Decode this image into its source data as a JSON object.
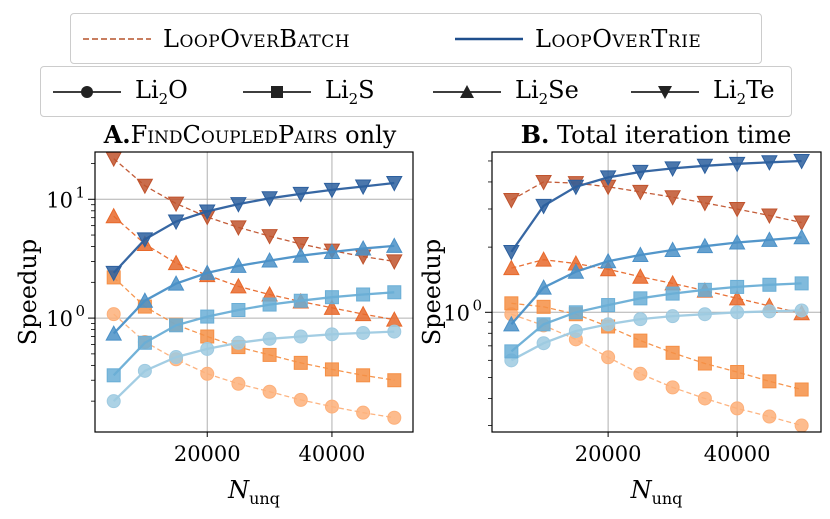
{
  "legend": {
    "methods": [
      {
        "label": "LoopOverBatch",
        "style": "dashed"
      },
      {
        "label": "LoopOverTrie",
        "style": "solid"
      }
    ],
    "materials": [
      {
        "label_main": "Li",
        "label_sub": "2",
        "label_tail": "O",
        "marker": "circle"
      },
      {
        "label_main": "Li",
        "label_sub": "2",
        "label_tail": "S",
        "marker": "square"
      },
      {
        "label_main": "Li",
        "label_sub": "2",
        "label_tail": "Se",
        "marker": "triangle-up"
      },
      {
        "label_main": "Li",
        "label_sub": "2",
        "label_tail": "Te",
        "marker": "triangle-down"
      }
    ]
  },
  "colors": {
    "legend_dashed": "#b5532b",
    "legend_solid": "#1f4e8c",
    "trie": {
      "circle": "#9ecae1",
      "square": "#6aaed6",
      "triangle-up": "#4a90c7",
      "triangle-down": "#2c5f9e"
    },
    "batch": {
      "circle": "#fdb07a",
      "square": "#f58f45",
      "triangle-up": "#e8692b",
      "triangle-down": "#c0532d"
    }
  },
  "chart_data": [
    {
      "type": "line",
      "title_bold": "A.",
      "title_sc": "FindCoupledPairs",
      "title_rest": " only",
      "xlabel_main": "N",
      "xlabel_sub": "unq",
      "ylabel": "Speedup",
      "yscale": "log",
      "xlim": [
        2000,
        53000
      ],
      "ylim": [
        0.11,
        25
      ],
      "xticks": [
        20000,
        40000
      ],
      "xtick_labels": [
        "20000",
        "40000"
      ],
      "yticks": [
        1,
        10
      ],
      "ytick_labels": [
        {
          "base": "10",
          "exp": "0"
        },
        {
          "base": "10",
          "exp": "1"
        }
      ],
      "x": [
        5000,
        10000,
        15000,
        20000,
        25000,
        30000,
        35000,
        40000,
        45000,
        50000
      ],
      "series": [
        {
          "material": "Li2O",
          "method": "LoopOverTrie",
          "marker": "circle",
          "values": [
            0.2,
            0.36,
            0.47,
            0.55,
            0.62,
            0.67,
            0.7,
            0.73,
            0.75,
            0.77
          ]
        },
        {
          "material": "Li2S",
          "method": "LoopOverTrie",
          "marker": "square",
          "values": [
            0.33,
            0.62,
            0.87,
            1.03,
            1.17,
            1.3,
            1.4,
            1.5,
            1.58,
            1.65
          ]
        },
        {
          "material": "Li2Se",
          "method": "LoopOverTrie",
          "marker": "triangle-up",
          "values": [
            0.74,
            1.4,
            1.95,
            2.4,
            2.75,
            3.05,
            3.35,
            3.6,
            3.85,
            4.05
          ]
        },
        {
          "material": "Li2Te",
          "method": "LoopOverTrie",
          "marker": "triangle-down",
          "values": [
            2.4,
            4.6,
            6.5,
            7.9,
            9.1,
            10.2,
            11.1,
            12.0,
            12.8,
            13.7
          ]
        },
        {
          "material": "Li2O",
          "method": "LoopOverBatch",
          "marker": "circle",
          "values": [
            1.08,
            0.63,
            0.45,
            0.34,
            0.28,
            0.24,
            0.205,
            0.18,
            0.16,
            0.145
          ]
        },
        {
          "material": "Li2S",
          "method": "LoopOverBatch",
          "marker": "square",
          "values": [
            2.2,
            1.25,
            0.88,
            0.7,
            0.57,
            0.49,
            0.42,
            0.37,
            0.33,
            0.3
          ]
        },
        {
          "material": "Li2Se",
          "method": "LoopOverBatch",
          "marker": "triangle-up",
          "values": [
            7.2,
            4.2,
            2.9,
            2.3,
            1.85,
            1.58,
            1.38,
            1.22,
            1.08,
            0.97
          ]
        },
        {
          "material": "Li2Te",
          "method": "LoopOverBatch",
          "marker": "triangle-down",
          "values": [
            22,
            13,
            9.2,
            7.1,
            5.8,
            4.9,
            4.2,
            3.7,
            3.3,
            3.0
          ]
        }
      ]
    },
    {
      "type": "line",
      "title_bold": "B.",
      "title_sc": "",
      "title_rest": " Total iteration time",
      "xlabel_main": "N",
      "xlabel_sub": "unq",
      "ylabel": "Speedup",
      "yscale": "log",
      "xlim": [
        2000,
        53000
      ],
      "ylim": [
        0.28,
        5.5
      ],
      "xticks": [
        20000,
        40000
      ],
      "xtick_labels": [
        "20000",
        "40000"
      ],
      "yticks": [
        1
      ],
      "ytick_labels": [
        {
          "base": "10",
          "exp": "0"
        }
      ],
      "x": [
        5000,
        10000,
        15000,
        20000,
        25000,
        30000,
        35000,
        40000,
        45000,
        50000
      ],
      "series": [
        {
          "material": "Li2O",
          "method": "LoopOverTrie",
          "marker": "circle",
          "values": [
            0.6,
            0.72,
            0.82,
            0.88,
            0.93,
            0.96,
            0.98,
            1.0,
            1.01,
            1.02
          ]
        },
        {
          "material": "Li2S",
          "method": "LoopOverTrie",
          "marker": "square",
          "values": [
            0.66,
            0.88,
            1.0,
            1.08,
            1.16,
            1.22,
            1.27,
            1.31,
            1.34,
            1.36
          ]
        },
        {
          "material": "Li2Se",
          "method": "LoopOverTrie",
          "marker": "triangle-up",
          "values": [
            0.88,
            1.3,
            1.54,
            1.72,
            1.84,
            1.94,
            2.02,
            2.1,
            2.16,
            2.22
          ]
        },
        {
          "material": "Li2Te",
          "method": "LoopOverTrie",
          "marker": "triangle-down",
          "values": [
            1.9,
            3.1,
            3.8,
            4.2,
            4.45,
            4.62,
            4.75,
            4.85,
            4.93,
            5.0
          ]
        },
        {
          "material": "Li2O",
          "method": "LoopOverBatch",
          "marker": "circle",
          "values": [
            0.98,
            0.87,
            0.75,
            0.62,
            0.52,
            0.45,
            0.4,
            0.36,
            0.33,
            0.3
          ]
        },
        {
          "material": "Li2S",
          "method": "LoopOverBatch",
          "marker": "square",
          "values": [
            1.1,
            1.06,
            0.98,
            0.86,
            0.74,
            0.65,
            0.58,
            0.53,
            0.48,
            0.44
          ]
        },
        {
          "material": "Li2Se",
          "method": "LoopOverBatch",
          "marker": "triangle-up",
          "values": [
            1.6,
            1.75,
            1.68,
            1.58,
            1.46,
            1.36,
            1.26,
            1.16,
            1.07,
            0.99
          ]
        },
        {
          "material": "Li2Te",
          "method": "LoopOverBatch",
          "marker": "triangle-down",
          "values": [
            3.3,
            4.0,
            3.95,
            3.8,
            3.6,
            3.4,
            3.2,
            3.0,
            2.8,
            2.6
          ]
        }
      ]
    }
  ]
}
